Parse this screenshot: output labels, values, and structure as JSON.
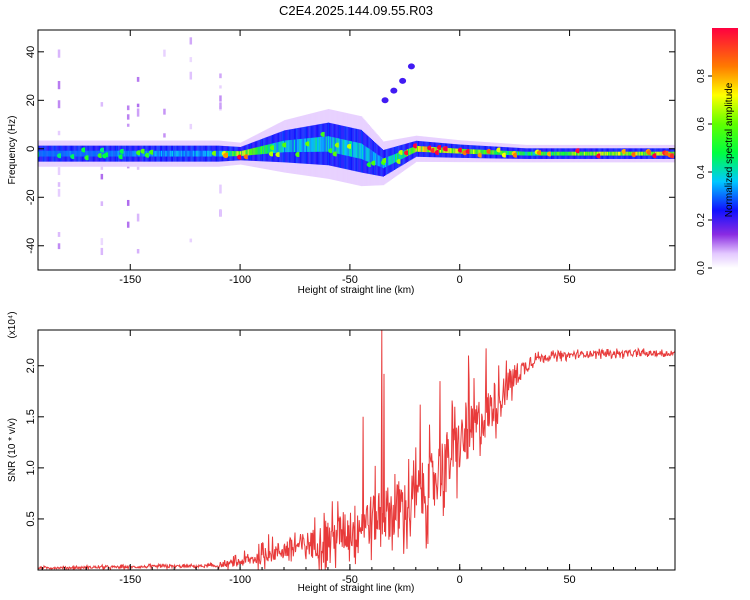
{
  "title": "C2E4.2025.144.09.55.R03",
  "chart_data": [
    {
      "type": "heatmap",
      "xlabel": "Height of straight line (km)",
      "ylabel": "Frequency (Hz)",
      "xlim": [
        -192,
        98
      ],
      "ylim": [
        -50,
        49
      ],
      "xticks": [
        -150,
        -100,
        -50,
        0,
        50
      ],
      "yticks": [
        -40,
        -20,
        0,
        20,
        40
      ],
      "colorbar": {
        "label": "Normalized spectral amplitude",
        "range": [
          0,
          1
        ],
        "ticks": [
          0.0,
          0.2,
          0.4,
          0.6,
          0.8
        ]
      },
      "description_band": [
        {
          "x": -190,
          "center_hz": -2,
          "width_hz": 6,
          "amplitude": 0.35
        },
        {
          "x": -150,
          "center_hz": -2,
          "width_hz": 6,
          "amplitude": 0.4
        },
        {
          "x": -110,
          "center_hz": -2,
          "width_hz": 6,
          "amplitude": 0.45
        },
        {
          "x": -100,
          "center_hz": -2,
          "width_hz": 5,
          "amplitude": 0.9
        },
        {
          "x": -80,
          "center_hz": 1,
          "width_hz": 12,
          "amplitude": 0.45
        },
        {
          "x": -60,
          "center_hz": 2,
          "width_hz": 16,
          "amplitude": 0.5
        },
        {
          "x": -45,
          "center_hz": -1,
          "width_hz": 16,
          "amplitude": 0.5
        },
        {
          "x": -35,
          "center_hz": -6,
          "width_hz": 10,
          "amplitude": 0.4
        },
        {
          "x": -20,
          "center_hz": 0,
          "width_hz": 6,
          "amplitude": 0.9
        },
        {
          "x": 0,
          "center_hz": -1,
          "width_hz": 5,
          "amplitude": 0.85
        },
        {
          "x": 30,
          "center_hz": -2,
          "width_hz": 4,
          "amplitude": 0.6
        },
        {
          "x": 60,
          "center_hz": -2,
          "width_hz": 4,
          "amplitude": 0.85
        },
        {
          "x": 95,
          "center_hz": -2,
          "width_hz": 4,
          "amplitude": 0.85
        }
      ],
      "branch": [
        {
          "x": -34,
          "hz": 20
        },
        {
          "x": -30,
          "hz": 24
        },
        {
          "x": -26,
          "hz": 28
        },
        {
          "x": -22,
          "hz": 34
        }
      ]
    },
    {
      "type": "line",
      "xlabel": "Height of straight line (km)",
      "ylabel": "SNR (10 * v/v)",
      "scale_note": "(x10⁴)",
      "xlim": [
        -192,
        98
      ],
      "ylim": [
        0,
        2.35
      ],
      "xticks": [
        -150,
        -100,
        -50,
        0,
        50
      ],
      "yticks": [
        0.5,
        1.0,
        1.5,
        2.0
      ],
      "color": "#e83a3a",
      "trend": [
        {
          "x": -192,
          "y": 0.02
        },
        {
          "x": -150,
          "y": 0.03
        },
        {
          "x": -110,
          "y": 0.04
        },
        {
          "x": -95,
          "y": 0.1
        },
        {
          "x": -80,
          "y": 0.2
        },
        {
          "x": -60,
          "y": 0.3
        },
        {
          "x": -45,
          "y": 0.45
        },
        {
          "x": -35,
          "y": 0.55
        },
        {
          "x": -25,
          "y": 0.6
        },
        {
          "x": -15,
          "y": 0.8
        },
        {
          "x": -5,
          "y": 1.1
        },
        {
          "x": 5,
          "y": 1.35
        },
        {
          "x": 15,
          "y": 1.6
        },
        {
          "x": 25,
          "y": 1.9
        },
        {
          "x": 35,
          "y": 2.08
        },
        {
          "x": 60,
          "y": 2.12
        },
        {
          "x": 98,
          "y": 2.12
        }
      ],
      "noise": [
        {
          "x": -192,
          "amp": 0.02
        },
        {
          "x": -110,
          "amp": 0.03
        },
        {
          "x": -95,
          "amp": 0.12
        },
        {
          "x": -70,
          "amp": 0.25
        },
        {
          "x": -50,
          "amp": 0.45
        },
        {
          "x": -30,
          "amp": 0.55
        },
        {
          "x": -10,
          "amp": 0.6
        },
        {
          "x": 10,
          "amp": 0.5
        },
        {
          "x": 25,
          "amp": 0.25
        },
        {
          "x": 35,
          "amp": 0.06
        },
        {
          "x": 98,
          "amp": 0.05
        }
      ],
      "peaks": [
        {
          "x": -35.5,
          "y": 2.35
        },
        {
          "x": -34.5,
          "y": 1.92
        },
        {
          "x": -44,
          "y": 1.5
        },
        {
          "x": -18,
          "y": 1.62
        },
        {
          "x": -9,
          "y": 1.85
        },
        {
          "x": 4,
          "y": 2.1
        },
        {
          "x": 12,
          "y": 2.17
        },
        {
          "x": -87,
          "y": 0.35
        }
      ]
    }
  ]
}
